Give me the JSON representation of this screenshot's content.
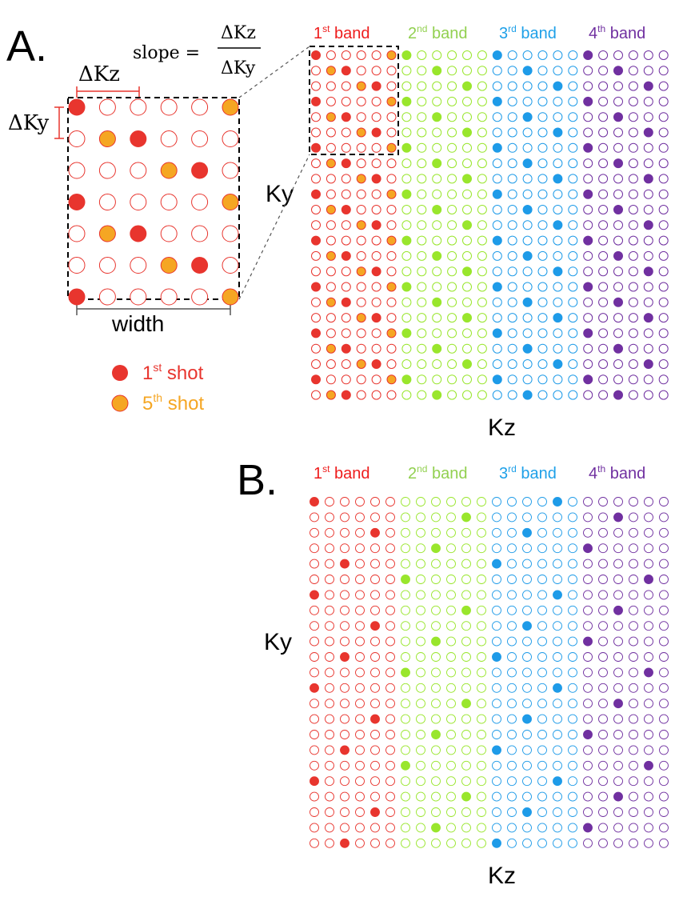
{
  "panel_a": {
    "letter": "A.",
    "slope": {
      "prefix": "slope = ",
      "numerator": "ΔKz",
      "denominator": "ΔKy"
    },
    "delta_kz": "ΔKz",
    "delta_ky": "ΔKy",
    "width_label": "width",
    "ky_label": "Ky",
    "kz_label": "Kz",
    "legend": [
      {
        "label": "1",
        "sup": "st",
        "suffix": " shot",
        "color": "#e8352e"
      },
      {
        "label": "5",
        "sup": "th",
        "suffix": " shot",
        "color": "#f5a623"
      }
    ]
  },
  "panel_b": {
    "letter": "B.",
    "ky_label": "Ky",
    "kz_label": "Kz"
  },
  "bands": [
    {
      "num": "1",
      "sup": "st",
      "word": " band",
      "color": "#ee1c1c",
      "dot": "#e8352e"
    },
    {
      "num": "2",
      "sup": "nd",
      "word": " band",
      "color": "#92d050",
      "dot": "#99e62c"
    },
    {
      "num": "3",
      "sup": "rd",
      "word": " band",
      "color": "#1ea0e8",
      "dot": "#1e9be8"
    },
    {
      "num": "4",
      "sup": "th",
      "word": " band",
      "color": "#7030a0",
      "dot": "#7030a0"
    }
  ],
  "colors": {
    "shot1": "#e8352e",
    "shot5": "#f5a623",
    "dash": "#000000"
  }
}
